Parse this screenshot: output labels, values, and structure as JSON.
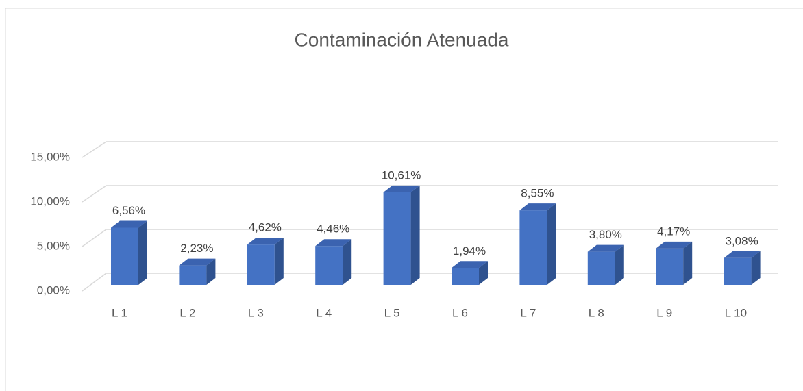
{
  "chart_data": {
    "type": "bar3d",
    "title": "Contaminación Atenuada",
    "categories": [
      "L 1",
      "L 2",
      "L 3",
      "L 4",
      "L 5",
      "L 6",
      "L 7",
      "L 8",
      "L 9",
      "L 10"
    ],
    "values": [
      6.56,
      2.23,
      4.62,
      4.46,
      10.61,
      1.94,
      8.55,
      3.8,
      4.17,
      3.08
    ],
    "value_labels": [
      "6,56%",
      "2,23%",
      "4,62%",
      "4,46%",
      "10,61%",
      "1,94%",
      "8,55%",
      "3,80%",
      "4,17%",
      "3,08%"
    ],
    "color": "#4472c4",
    "ylim": [
      0,
      15
    ],
    "yticks": [
      {
        "value": 0,
        "label": "0,00%"
      },
      {
        "value": 5,
        "label": "5,00%"
      },
      {
        "value": 10,
        "label": "10,00%"
      },
      {
        "value": 15,
        "label": "15,00%"
      }
    ],
    "grid": true
  }
}
